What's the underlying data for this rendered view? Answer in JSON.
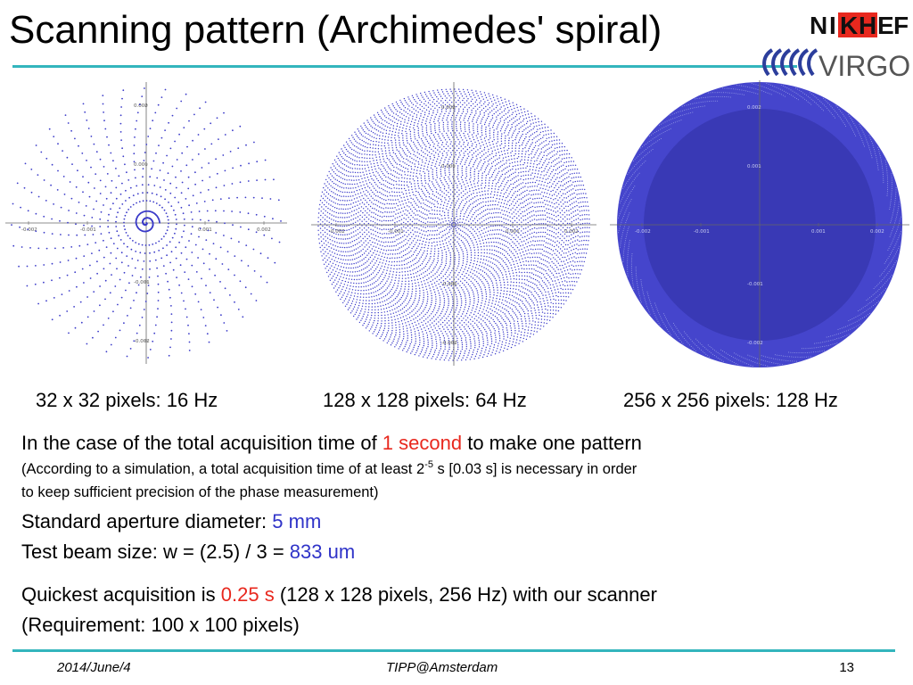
{
  "slide": {
    "title": "Scanning pattern (Archimedes' spiral)",
    "logos": {
      "nikhef": {
        "n": "N",
        "i": "I",
        "k": "K",
        "h": "H",
        "e": "E",
        "f": "F"
      },
      "virgo": "VIRGO"
    }
  },
  "plots": [
    {
      "caption": "32 x 32 pixels: 16 Hz",
      "color": "#3b3bc9",
      "pattern": "sparse-dots-spiral"
    },
    {
      "caption": "128 x 128 pixels: 64 Hz",
      "color": "#3b3bc9",
      "pattern": "dense-dots"
    },
    {
      "caption": "256 x 256 pixels: 128 Hz",
      "color": "#3b3bc9",
      "pattern": "filled-disc"
    }
  ],
  "axis_ticks": {
    "x": [
      "-0.002",
      "-0.001",
      "0.001",
      "0.002"
    ],
    "y": [
      "0.002",
      "0.001",
      "-0.001",
      "-0.002"
    ]
  },
  "text": {
    "line1_a": "In the case of the total acquisition time of ",
    "line1_red": "1 second",
    "line1_b": " to make one pattern",
    "line2_a": "(According to a simulation, a total acquisition time of at least  2",
    "line2_sup": "-5",
    "line2_b": " s [0.03 s] is necessary in order",
    "line3": "to keep sufficient precision of the phase measurement)",
    "line4_a": "Standard aperture diameter: ",
    "line4_blue": "5 mm",
    "line5_a": "Test beam size: w = (2.5) / 3 = ",
    "line5_blue": "833 um",
    "line6_a": "Quickest acquisition is ",
    "line6_red": "0.25 s",
    "line6_b": " (128 x 128 pixels, 256 Hz) with our scanner",
    "line7": "(Requirement: 100 x 100 pixels)"
  },
  "footer": {
    "date": "2014/June/4",
    "venue": "TIPP@Amsterdam",
    "page": "13"
  },
  "colors": {
    "accent_rule": "#33b5bd",
    "red": "#e8281e",
    "blue": "#2f33c8",
    "dots": "#3b3bc9"
  }
}
